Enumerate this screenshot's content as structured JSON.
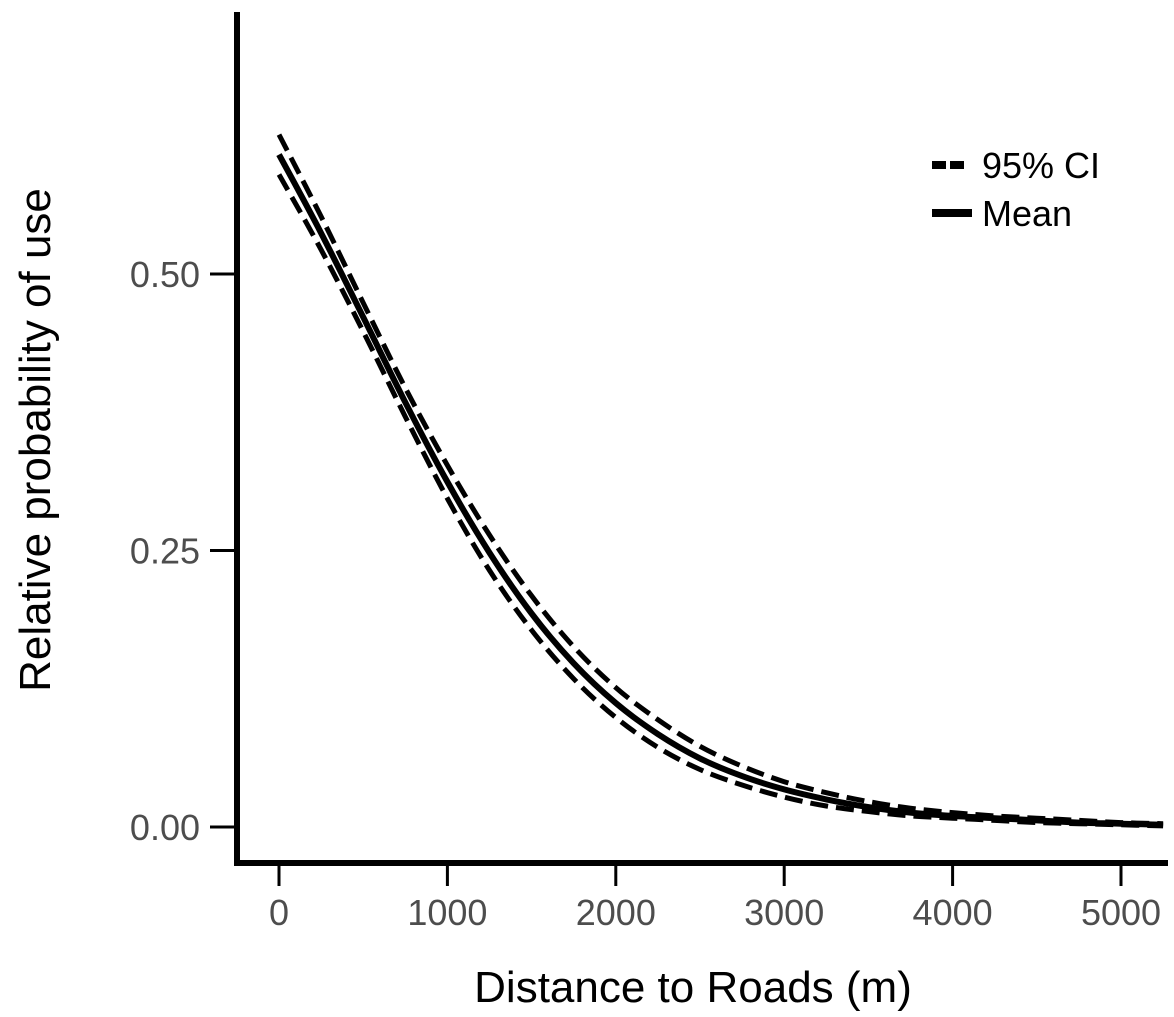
{
  "chart_data": {
    "type": "line",
    "title": "",
    "xlabel": "Distance to Roads (m)",
    "ylabel": "Relative probability of use",
    "xlim": [
      -250,
      5250
    ],
    "ylim": [
      -0.035,
      0.74
    ],
    "x_ticks": [
      0,
      1000,
      2000,
      3000,
      4000,
      5000
    ],
    "x_tick_labels": [
      "0",
      "1000",
      "2000",
      "3000",
      "4000",
      "5000"
    ],
    "y_ticks": [
      0.0,
      0.25,
      0.5
    ],
    "y_tick_labels": [
      "0.00",
      "0.25",
      "0.50"
    ],
    "grid": false,
    "legend_position": "top-right",
    "legend": [
      {
        "label": "95% CI",
        "style": "dashed"
      },
      {
        "label": "Mean",
        "style": "solid"
      }
    ],
    "x": [
      0,
      250,
      500,
      750,
      1000,
      1250,
      1500,
      1750,
      2000,
      2250,
      2500,
      2750,
      3000,
      3250,
      3500,
      3750,
      4000,
      4250,
      4500,
      4750,
      5000,
      5250
    ],
    "series": [
      {
        "name": "Mean",
        "style": "solid",
        "values": [
          0.608,
          0.537,
          0.461,
          0.384,
          0.312,
          0.248,
          0.193,
          0.148,
          0.112,
          0.084,
          0.062,
          0.046,
          0.034,
          0.025,
          0.018,
          0.013,
          0.01,
          0.008,
          0.006,
          0.004,
          0.003,
          0.002
        ]
      },
      {
        "name": "95% CI upper",
        "style": "dashed",
        "values": [
          0.626,
          0.552,
          0.474,
          0.397,
          0.327,
          0.264,
          0.209,
          0.163,
          0.126,
          0.097,
          0.073,
          0.055,
          0.041,
          0.031,
          0.023,
          0.017,
          0.013,
          0.01,
          0.008,
          0.006,
          0.004,
          0.003
        ]
      },
      {
        "name": "95% CI lower",
        "style": "dashed",
        "values": [
          0.59,
          0.522,
          0.448,
          0.371,
          0.297,
          0.232,
          0.178,
          0.134,
          0.099,
          0.072,
          0.052,
          0.038,
          0.027,
          0.019,
          0.014,
          0.01,
          0.008,
          0.006,
          0.004,
          0.003,
          0.002,
          0.001
        ]
      }
    ]
  }
}
